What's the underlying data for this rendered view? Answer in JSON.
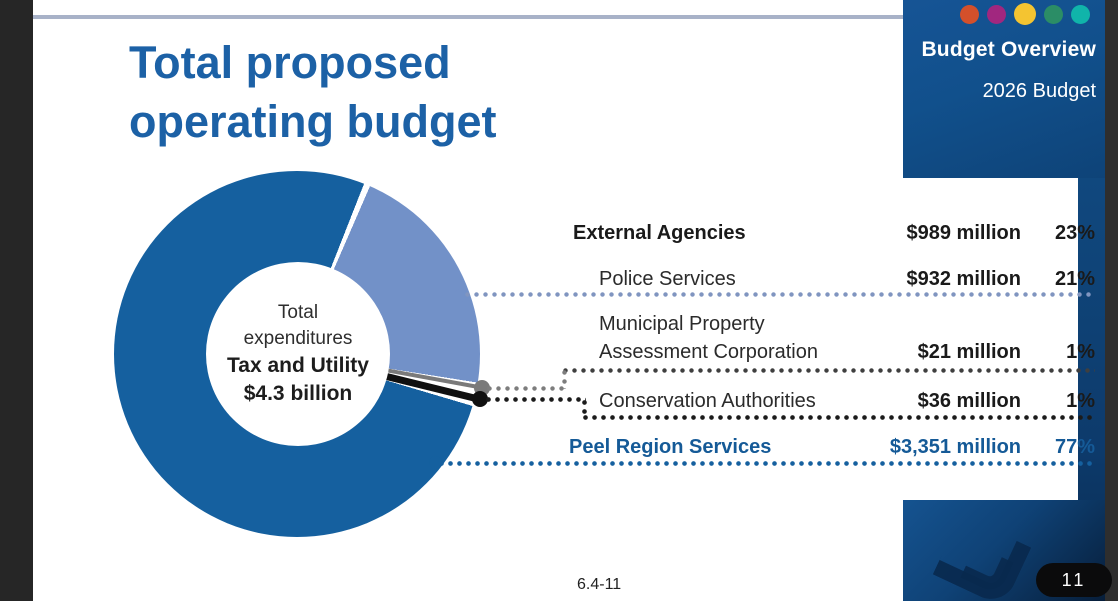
{
  "viewer": {
    "page_pill": "11"
  },
  "slide": {
    "title_line1": "Total proposed",
    "title_line2": "operating budget",
    "header": {
      "title": "Budget Overview",
      "subtitle": "2026 Budget",
      "dot_colors": [
        "#d4502b",
        "#a1277f",
        "#f4c431",
        "#2b8d66",
        "#10b4aa"
      ]
    },
    "donut_center": {
      "line1": "Total",
      "line2": "expenditures",
      "line3": "Tax and Utility",
      "line4": "$4.3 billion"
    },
    "rows": [
      {
        "label": "External Agencies",
        "value": "$989 million",
        "pct": "23%"
      },
      {
        "label": "Police Services",
        "value": "$932 million",
        "pct": "21%"
      },
      {
        "label1": "Municipal Property",
        "label2": "Assessment Corporation",
        "value": "$21 million",
        "pct": "1%"
      },
      {
        "label": "Conservation Authorities",
        "value": "$36 million",
        "pct": "1%"
      },
      {
        "label": "Peel Region Services",
        "value": "$3,351 million",
        "pct": "77%"
      }
    ],
    "footer_ref": "6.4-11",
    "colors": {
      "peel_dark_blue": "#15609f",
      "police_light_blue": "#7291c8",
      "mpac_gray": "#7a7a7a",
      "conservation_black": "#101010",
      "title_blue": "#1c61a6",
      "header_box_blue": "#11508c"
    }
  },
  "chart_data": {
    "type": "pie",
    "subtype": "donut",
    "title": "Total proposed operating budget",
    "center_label": "Total expenditures Tax and Utility $4.3 billion",
    "total": "$4.3 billion",
    "units": "millions of dollars",
    "slices": [
      {
        "label": "Police Services",
        "value": 932,
        "pct": 21,
        "color": "#7291c8"
      },
      {
        "label": "Municipal Property Assessment Corporation",
        "value": 21,
        "pct": 1,
        "color": "#7a7a7a"
      },
      {
        "label": "Conservation Authorities",
        "value": 36,
        "pct": 1,
        "color": "#101010"
      },
      {
        "label": "Peel Region Services",
        "value": 3351,
        "pct": 77,
        "color": "#15609f"
      }
    ],
    "groups": [
      {
        "label": "External Agencies",
        "value": 989,
        "pct": 23,
        "members": [
          "Police Services",
          "Municipal Property Assessment Corporation",
          "Conservation Authorities"
        ]
      }
    ],
    "legend_position": "right",
    "start_angle_deg_from_top": 22
  }
}
